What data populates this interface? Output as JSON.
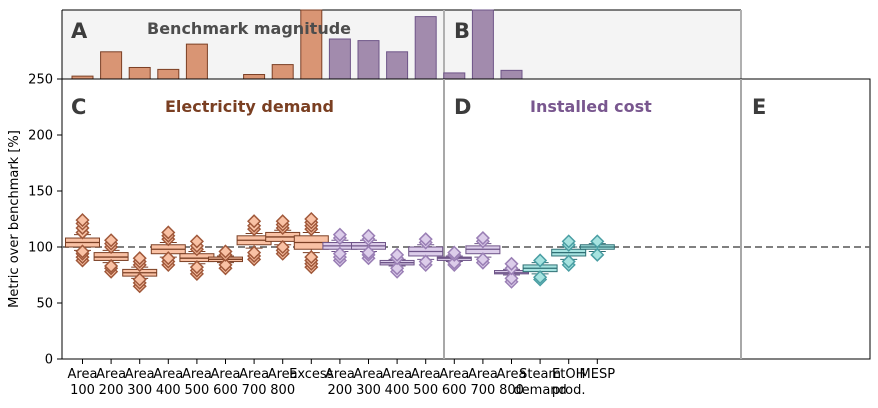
{
  "chart_data": {
    "type": "box",
    "ylabel": "Metric over benchmark [%]",
    "ylim": [
      0,
      250
    ],
    "yticks": [
      0,
      50,
      100,
      150,
      200,
      250
    ],
    "reference_line": 100,
    "categories": [
      "Area\n100",
      "Area\n200",
      "Area\n300",
      "Area\n400",
      "Area\n500",
      "Area\n600",
      "Area\n700",
      "Area\n800",
      "Excess",
      "Area\n200",
      "Area\n300",
      "Area\n400",
      "Area\n500",
      "Area\n600",
      "Area\n700",
      "Area\n800",
      "Steam\ndemand",
      "EtOH\nprod.",
      "MESP"
    ],
    "colors": {
      "electricity_fill": "#f9c1a4",
      "electricity_edge": "#7b3f24",
      "electricity_flier": "#a0583a",
      "cost_fill": "#dccdea",
      "cost_edge": "#6e5488",
      "cost_flier": "#9a7fb5",
      "e_fill": "#a6e3e0",
      "e_edge": "#2f6f74",
      "e_flier": "#4a9ea3",
      "bench_elec": "#d99574",
      "bench_cost": "#a28bad",
      "bench_bg": "#f4f4f4"
    },
    "panels": [
      {
        "letter": "A",
        "title": "Benchmark magnitude",
        "title_color": "#4d4d4d"
      },
      {
        "letter": "B",
        "title": "",
        "title_color": "#4d4d4d"
      },
      {
        "letter": "C",
        "title": "Electricity demand",
        "title_color": "#7a3f22"
      },
      {
        "letter": "D",
        "title": "Installed cost",
        "title_color": "#79578f"
      },
      {
        "letter": "E",
        "title": "",
        "title_color": "#3c3c3c"
      }
    ],
    "benchmark_bars": {
      "A": [
        0.09,
        0.85,
        0.36,
        0.3,
        1.09,
        0.0,
        0.14,
        0.45,
        2.2
      ],
      "B": [
        1.25,
        1.2,
        0.85,
        1.95,
        0.19,
        2.2,
        0.27
      ]
    },
    "boxes": [
      {
        "group": "electricity",
        "q1": 100,
        "median": 104,
        "q3": 108,
        "wlo": 97,
        "whi": 111,
        "fliers": [
          88,
          91,
          94,
          96,
          113,
          117,
          121,
          124
        ]
      },
      {
        "group": "electricity",
        "q1": 88,
        "median": 91,
        "q3": 95,
        "wlo": 86,
        "whi": 97,
        "fliers": [
          78,
          81,
          83,
          100,
          103,
          106
        ]
      },
      {
        "group": "electricity",
        "q1": 74,
        "median": 77,
        "q3": 80,
        "wlo": 72,
        "whi": 82,
        "fliers": [
          65,
          68,
          71,
          84,
          87,
          90
        ]
      },
      {
        "group": "electricity",
        "q1": 94,
        "median": 98,
        "q3": 102,
        "wlo": 91,
        "whi": 104,
        "fliers": [
          84,
          87,
          90,
          107,
          110,
          113
        ]
      },
      {
        "group": "electricity",
        "q1": 87,
        "median": 90,
        "q3": 94,
        "wlo": 85,
        "whi": 96,
        "fliers": [
          76,
          79,
          82,
          98,
          101,
          105
        ]
      },
      {
        "group": "electricity",
        "q1": 87,
        "median": 89,
        "q3": 91,
        "wlo": 86,
        "whi": 92,
        "fliers": [
          81,
          84,
          93,
          96
        ]
      },
      {
        "group": "electricity",
        "q1": 102,
        "median": 106,
        "q3": 110,
        "wlo": 99,
        "whi": 112,
        "fliers": [
          89,
          92,
          95,
          116,
          119,
          123
        ]
      },
      {
        "group": "electricity",
        "q1": 105,
        "median": 109,
        "q3": 113,
        "wlo": 102,
        "whi": 115,
        "fliers": [
          94,
          97,
          100,
          117,
          120,
          123
        ]
      },
      {
        "group": "electricity",
        "q1": 98,
        "median": 104,
        "q3": 110,
        "wlo": 95,
        "whi": 113,
        "fliers": [
          82,
          85,
          88,
          91,
          116,
          119,
          122,
          125
        ]
      },
      {
        "group": "cost",
        "q1": 98,
        "median": 101,
        "q3": 104,
        "wlo": 96,
        "whi": 106,
        "fliers": [
          88,
          91,
          94,
          108,
          111
        ]
      },
      {
        "group": "cost",
        "q1": 98,
        "median": 101,
        "q3": 104,
        "wlo": 96,
        "whi": 106,
        "fliers": [
          90,
          93,
          95,
          107,
          110
        ]
      },
      {
        "group": "cost",
        "q1": 84,
        "median": 86,
        "q3": 88,
        "wlo": 83,
        "whi": 89,
        "fliers": [
          78,
          81,
          90,
          93
        ]
      },
      {
        "group": "cost",
        "q1": 92,
        "median": 96,
        "q3": 100,
        "wlo": 89,
        "whi": 102,
        "fliers": [
          84,
          87,
          104,
          107
        ]
      },
      {
        "group": "cost",
        "q1": 88,
        "median": 90,
        "q3": 91,
        "wlo": 87,
        "whi": 92,
        "fliers": [
          84,
          86,
          93,
          95
        ]
      },
      {
        "group": "cost",
        "q1": 94,
        "median": 98,
        "q3": 101,
        "wlo": 91,
        "whi": 103,
        "fliers": [
          86,
          89,
          105,
          108
        ]
      },
      {
        "group": "cost",
        "q1": 76,
        "median": 77,
        "q3": 79,
        "wlo": 75,
        "whi": 80,
        "fliers": [
          69,
          72,
          81,
          85
        ]
      },
      {
        "group": "e",
        "q1": 78,
        "median": 81,
        "q3": 84,
        "wlo": 76,
        "whi": 86,
        "fliers": [
          71,
          73,
          88
        ]
      },
      {
        "group": "e",
        "q1": 92,
        "median": 95,
        "q3": 98,
        "wlo": 89,
        "whi": 100,
        "fliers": [
          84,
          87,
          102,
          105
        ]
      },
      {
        "group": "e",
        "q1": 98,
        "median": 100,
        "q3": 102,
        "wlo": 96,
        "whi": 103,
        "fliers": [
          93,
          105
        ]
      }
    ]
  }
}
